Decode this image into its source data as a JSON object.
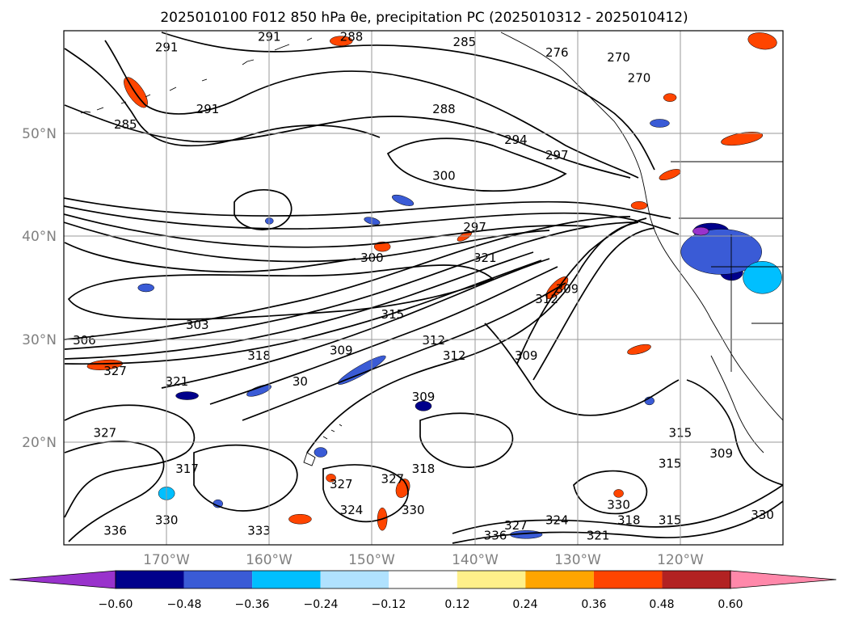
{
  "title": "2025010100 F012 850 hPa θe, precipitation PC (2025010312 - 2025010412)",
  "map": {
    "lon_range": [
      -180,
      -110
    ],
    "lat_range": [
      10,
      60
    ],
    "lat_labels": [
      {
        "lat": 50,
        "text": "50°N"
      },
      {
        "lat": 40,
        "text": "40°N"
      },
      {
        "lat": 30,
        "text": "30°N"
      },
      {
        "lat": 20,
        "text": "20°N"
      }
    ],
    "lon_labels": [
      {
        "lon": -170,
        "text": "170°W"
      },
      {
        "lon": -160,
        "text": "160°W"
      },
      {
        "lon": -150,
        "text": "150°W"
      },
      {
        "lon": -140,
        "text": "140°W"
      },
      {
        "lon": -130,
        "text": "130°W"
      },
      {
        "lon": -120,
        "text": "120°W"
      }
    ],
    "contour_labels": [
      {
        "lon": -170,
        "lat": 58,
        "text": "291"
      },
      {
        "lon": -160,
        "lat": 59,
        "text": "291"
      },
      {
        "lon": -152,
        "lat": 59,
        "text": "288"
      },
      {
        "lon": -141,
        "lat": 58.5,
        "text": "285"
      },
      {
        "lon": -132,
        "lat": 57.5,
        "text": "276"
      },
      {
        "lon": -126,
        "lat": 57,
        "text": "270"
      },
      {
        "lon": -124,
        "lat": 55,
        "text": "270"
      },
      {
        "lon": -174,
        "lat": 50.5,
        "text": "285"
      },
      {
        "lon": -166,
        "lat": 52,
        "text": "291"
      },
      {
        "lon": -143,
        "lat": 52,
        "text": "288"
      },
      {
        "lon": -136,
        "lat": 49,
        "text": "294"
      },
      {
        "lon": -132,
        "lat": 47.5,
        "text": "297"
      },
      {
        "lon": -143,
        "lat": 45.5,
        "text": "300"
      },
      {
        "lon": -140,
        "lat": 40.5,
        "text": "297"
      },
      {
        "lon": -150,
        "lat": 37.5,
        "text": "300"
      },
      {
        "lon": -139,
        "lat": 37.5,
        "text": "321"
      },
      {
        "lon": -131,
        "lat": 34.5,
        "text": "309"
      },
      {
        "lon": -133,
        "lat": 33.5,
        "text": "312"
      },
      {
        "lon": -167,
        "lat": 31,
        "text": "303"
      },
      {
        "lon": -148,
        "lat": 32,
        "text": "315"
      },
      {
        "lon": -144,
        "lat": 29.5,
        "text": "312"
      },
      {
        "lon": -142,
        "lat": 28,
        "text": "312"
      },
      {
        "lon": -135,
        "lat": 28,
        "text": "309"
      },
      {
        "lon": -178,
        "lat": 29.5,
        "text": "306"
      },
      {
        "lon": -161,
        "lat": 28,
        "text": "318"
      },
      {
        "lon": -153,
        "lat": 28.5,
        "text": "309"
      },
      {
        "lon": -175,
        "lat": 26.5,
        "text": "327"
      },
      {
        "lon": -169,
        "lat": 25.5,
        "text": "321"
      },
      {
        "lon": -157,
        "lat": 25.5,
        "text": "30"
      },
      {
        "lon": -145,
        "lat": 24,
        "text": "309"
      },
      {
        "lon": -176,
        "lat": 20.5,
        "text": "327"
      },
      {
        "lon": -168,
        "lat": 17,
        "text": "317"
      },
      {
        "lon": -145,
        "lat": 17,
        "text": "318"
      },
      {
        "lon": -148,
        "lat": 16,
        "text": "327"
      },
      {
        "lon": -153,
        "lat": 15.5,
        "text": "327"
      },
      {
        "lon": -120,
        "lat": 20.5,
        "text": "315"
      },
      {
        "lon": -116,
        "lat": 18.5,
        "text": "309"
      },
      {
        "lon": -121,
        "lat": 17.5,
        "text": "315"
      },
      {
        "lon": -152,
        "lat": 13,
        "text": "324"
      },
      {
        "lon": -146,
        "lat": 13,
        "text": "330"
      },
      {
        "lon": -132,
        "lat": 12,
        "text": "324"
      },
      {
        "lon": -126,
        "lat": 13.5,
        "text": "330"
      },
      {
        "lon": -125,
        "lat": 12,
        "text": "318"
      },
      {
        "lon": -121,
        "lat": 12,
        "text": "315"
      },
      {
        "lon": -170,
        "lat": 12,
        "text": "330"
      },
      {
        "lon": -175,
        "lat": 11,
        "text": "336"
      },
      {
        "lon": -161,
        "lat": 11,
        "text": "333"
      },
      {
        "lon": -136,
        "lat": 11.5,
        "text": "327"
      },
      {
        "lon": -138,
        "lat": 10.5,
        "text": "336"
      },
      {
        "lon": -128,
        "lat": 10.5,
        "text": "321"
      },
      {
        "lon": -112,
        "lat": 12.5,
        "text": "330"
      }
    ]
  },
  "colorbar": {
    "bin_edges": [
      -0.72,
      -0.6,
      -0.48,
      -0.36,
      -0.24,
      -0.12,
      0.12,
      0.24,
      0.36,
      0.48,
      0.6,
      0.72
    ],
    "colors": [
      "#9932cc",
      "#00008b",
      "#3a5bd6",
      "#00bfff",
      "#b0e2ff",
      "#ffffff",
      "#fff08a",
      "#ffa500",
      "#ff4500",
      "#b22222",
      "#ff88aa"
    ],
    "tick_labels": [
      "−0.60",
      "−0.48",
      "−0.36",
      "−0.24",
      "−0.12",
      "0.12",
      "0.24",
      "0.36",
      "0.48",
      "0.60"
    ],
    "extend": "both"
  },
  "precip_patches": [
    {
      "lon": -173,
      "lat": 54.0,
      "rx": 9,
      "ry": 22,
      "rot": -35,
      "color": "#ff4500"
    },
    {
      "lon": -153,
      "lat": 59.0,
      "rx": 14,
      "ry": 6,
      "rot": 0,
      "color": "#ff4500"
    },
    {
      "lon": -112,
      "lat": 59.0,
      "rx": 18,
      "ry": 10,
      "rot": 10,
      "color": "#ff4500"
    },
    {
      "lon": -114,
      "lat": 49.5,
      "rx": 26,
      "ry": 7,
      "rot": -10,
      "color": "#ff4500"
    },
    {
      "lon": -121,
      "lat": 46.0,
      "rx": 14,
      "ry": 5,
      "rot": -20,
      "color": "#ff4500"
    },
    {
      "lon": -124,
      "lat": 43.0,
      "rx": 10,
      "ry": 5,
      "rot": 0,
      "color": "#ff4500"
    },
    {
      "lon": -141,
      "lat": 40.0,
      "rx": 10,
      "ry": 4,
      "rot": -30,
      "color": "#ff4500"
    },
    {
      "lon": -149,
      "lat": 39.0,
      "rx": 10,
      "ry": 6,
      "rot": 0,
      "color": "#ff4500"
    },
    {
      "lon": -132,
      "lat": 35.0,
      "rx": 18,
      "ry": 7,
      "rot": -45,
      "color": "#ff4500"
    },
    {
      "lon": -124,
      "lat": 29.0,
      "rx": 15,
      "ry": 5,
      "rot": -15,
      "color": "#ff4500"
    },
    {
      "lon": -176,
      "lat": 27.5,
      "rx": 22,
      "ry": 6,
      "rot": -5,
      "color": "#ff4500"
    },
    {
      "lon": -147,
      "lat": 15.5,
      "rx": 8,
      "ry": 12,
      "rot": 20,
      "color": "#ff4500"
    },
    {
      "lon": -154,
      "lat": 16.5,
      "rx": 6,
      "ry": 5,
      "rot": 0,
      "color": "#ff4500"
    },
    {
      "lon": -157,
      "lat": 12.5,
      "rx": 14,
      "ry": 6,
      "rot": 0,
      "color": "#ff4500"
    },
    {
      "lon": -149,
      "lat": 12.5,
      "rx": 6,
      "ry": 14,
      "rot": 0,
      "color": "#ff4500"
    },
    {
      "lon": -126,
      "lat": 15.0,
      "rx": 6,
      "ry": 5,
      "rot": 0,
      "color": "#ff4500"
    },
    {
      "lon": -121,
      "lat": 53.5,
      "rx": 8,
      "ry": 5,
      "rot": 0,
      "color": "#ff4500"
    },
    {
      "lon": -117,
      "lat": 40.5,
      "rx": 22,
      "ry": 10,
      "rot": 0,
      "color": "#00008b"
    },
    {
      "lon": -115,
      "lat": 36.5,
      "rx": 14,
      "ry": 10,
      "rot": 0,
      "color": "#00008b"
    },
    {
      "lon": -116,
      "lat": 38.5,
      "rx": 50,
      "ry": 28,
      "rot": 0,
      "color": "#3a5bd6"
    },
    {
      "lon": -112,
      "lat": 36.0,
      "rx": 24,
      "ry": 20,
      "rot": 0,
      "color": "#00bfff"
    },
    {
      "lon": -118,
      "lat": 40.5,
      "rx": 10,
      "ry": 5,
      "rot": 0,
      "color": "#9932cc"
    },
    {
      "lon": -151,
      "lat": 27.0,
      "rx": 34,
      "ry": 6,
      "rot": -30,
      "color": "#3a5bd6"
    },
    {
      "lon": -161,
      "lat": 25.0,
      "rx": 16,
      "ry": 5,
      "rot": -20,
      "color": "#3a5bd6"
    },
    {
      "lon": -168,
      "lat": 24.5,
      "rx": 14,
      "ry": 5,
      "rot": 0,
      "color": "#00008b"
    },
    {
      "lon": -145,
      "lat": 23.5,
      "rx": 10,
      "ry": 6,
      "rot": 0,
      "color": "#00008b"
    },
    {
      "lon": -155,
      "lat": 19.0,
      "rx": 8,
      "ry": 6,
      "rot": 0,
      "color": "#3a5bd6"
    },
    {
      "lon": -170,
      "lat": 15.0,
      "rx": 10,
      "ry": 8,
      "rot": 0,
      "color": "#00bfff"
    },
    {
      "lon": -150,
      "lat": 41.5,
      "rx": 10,
      "ry": 4,
      "rot": 15,
      "color": "#3a5bd6"
    },
    {
      "lon": -147,
      "lat": 43.5,
      "rx": 14,
      "ry": 5,
      "rot": 20,
      "color": "#3a5bd6"
    },
    {
      "lon": -172,
      "lat": 35.0,
      "rx": 10,
      "ry": 5,
      "rot": 0,
      "color": "#3a5bd6"
    },
    {
      "lon": -122,
      "lat": 51.0,
      "rx": 12,
      "ry": 5,
      "rot": 0,
      "color": "#3a5bd6"
    },
    {
      "lon": -160,
      "lat": 41.5,
      "rx": 5,
      "ry": 4,
      "rot": 0,
      "color": "#3a5bd6"
    },
    {
      "lon": -123,
      "lat": 24.0,
      "rx": 6,
      "ry": 5,
      "rot": 0,
      "color": "#3a5bd6"
    },
    {
      "lon": -165,
      "lat": 14.0,
      "rx": 6,
      "ry": 5,
      "rot": 0,
      "color": "#3a5bd6"
    },
    {
      "lon": -135,
      "lat": 11.0,
      "rx": 20,
      "ry": 5,
      "rot": 0,
      "color": "#3a5bd6"
    }
  ]
}
